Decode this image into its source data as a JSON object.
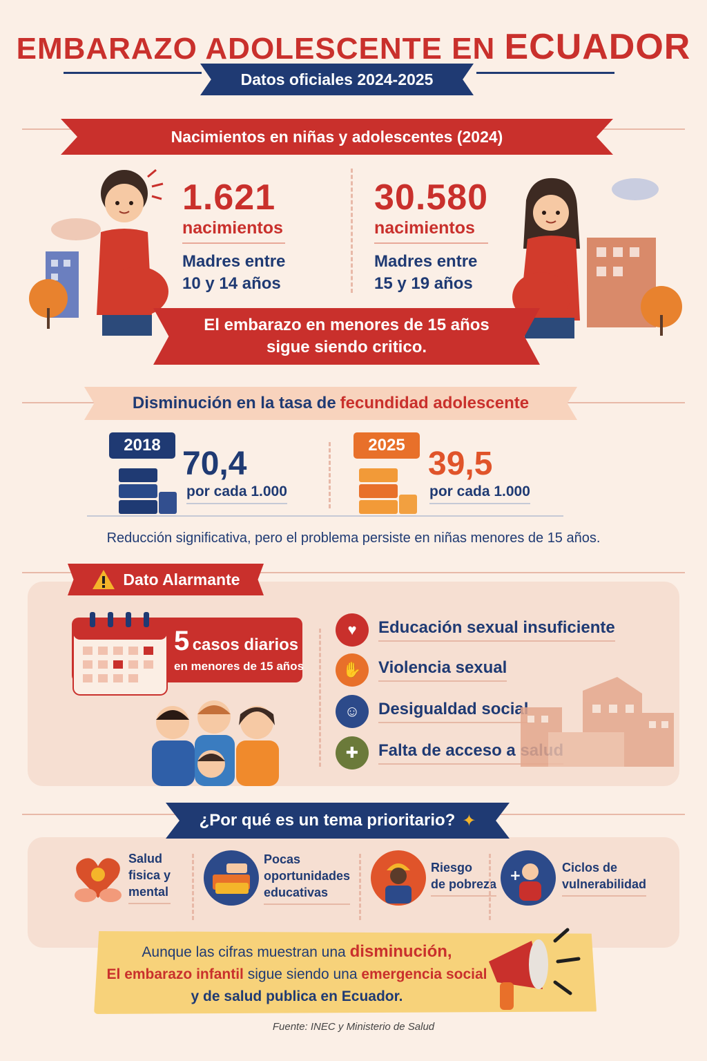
{
  "header": {
    "title_a": "EMBARAZO ADOLESCENTE EN",
    "title_b": "ECUADOR",
    "subtitle": "Datos oficiales 2024-2025"
  },
  "births": {
    "title": "Nacimientos en niñas y adolescentes (2024)",
    "left": {
      "number": "1.621",
      "label": "nacimientos",
      "desc1": "Madres entre",
      "desc2": "10 y 14 años"
    },
    "right": {
      "number": "30.580",
      "label": "nacimientos",
      "desc1": "Madres entre",
      "desc2": "15 y 19 años"
    },
    "banner1": "El embarazo en menores de 15 años",
    "banner2": "sigue siendo critico."
  },
  "fertility": {
    "title_a": "Disminución en la tasa de",
    "title_b": "fecundidad adolescente",
    "y2018": {
      "year": "2018",
      "rate": "70,4",
      "per": "por cada 1.000"
    },
    "y2025": {
      "year": "2025",
      "rate": "39,5",
      "per": "por cada 1.000"
    },
    "note": "Reducción significativa, pero el problema persiste en niñas menores de 15 años."
  },
  "alarm": {
    "title": "Dato Alarmante",
    "cases_num": "5",
    "cases_text": "casos diarios",
    "cases_sub": "en menores de 15 años",
    "reasons": [
      {
        "label": "Educación sexual insuficiente",
        "icon": "heart-hand-icon"
      },
      {
        "label": "Violencia sexual",
        "icon": "hand-stop-icon"
      },
      {
        "label": "Desigualdad social",
        "icon": "people-icon"
      },
      {
        "label": "Falta de acceso a salud",
        "icon": "medical-cross-icon"
      }
    ]
  },
  "priority": {
    "title": "¿Por qué es un tema prioritario?",
    "items": [
      {
        "l1": "Salud",
        "l2": "fisica y",
        "l3": "mental"
      },
      {
        "l1": "Pocas",
        "l2": "oportunidades",
        "l3": "educativas"
      },
      {
        "l1": "Riesgo",
        "l2": "de pobreza"
      },
      {
        "l1": "Ciclos de",
        "l2": "vulnerabilidad"
      }
    ]
  },
  "conclusion": {
    "l1a": "Aunque las cifras muestran una",
    "l1b": "disminución,",
    "l2a": "El embarazo infantil",
    "l2b": "sigue siendo una",
    "l2c": "emergencia social",
    "l3": "y de salud publica en Ecuador."
  },
  "source": "Fuente: INEC y Ministerio de Salud",
  "colors": {
    "red": "#c9302c",
    "navy": "#1f3a73",
    "orange": "#e8702a",
    "bg": "#fbefe6"
  }
}
